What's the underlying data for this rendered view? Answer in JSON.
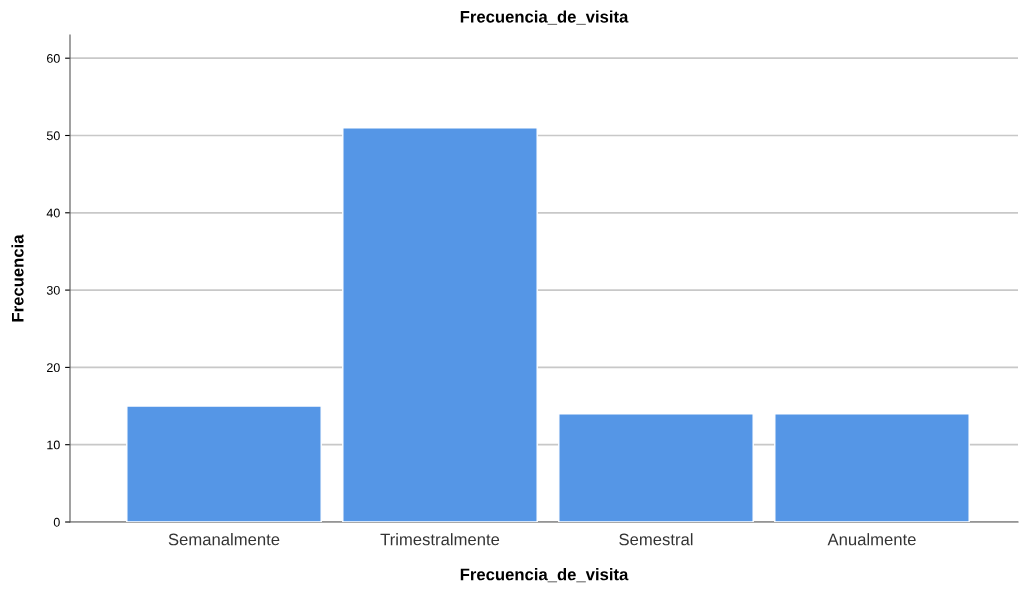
{
  "chart_data": {
    "type": "bar",
    "title": "Frecuencia_de_visita",
    "xlabel": "Frecuencia_de_visita",
    "ylabel": "Frecuencia",
    "categories": [
      "Semanalmente",
      "Trimestralmente",
      "Semestral",
      "Anualmente"
    ],
    "values": [
      15,
      51,
      14,
      14
    ],
    "color": "#5596e6",
    "ylim": [
      0,
      63
    ],
    "yticks": [
      0,
      10,
      20,
      30,
      40,
      50,
      60
    ],
    "grid": "y",
    "legend": false
  }
}
